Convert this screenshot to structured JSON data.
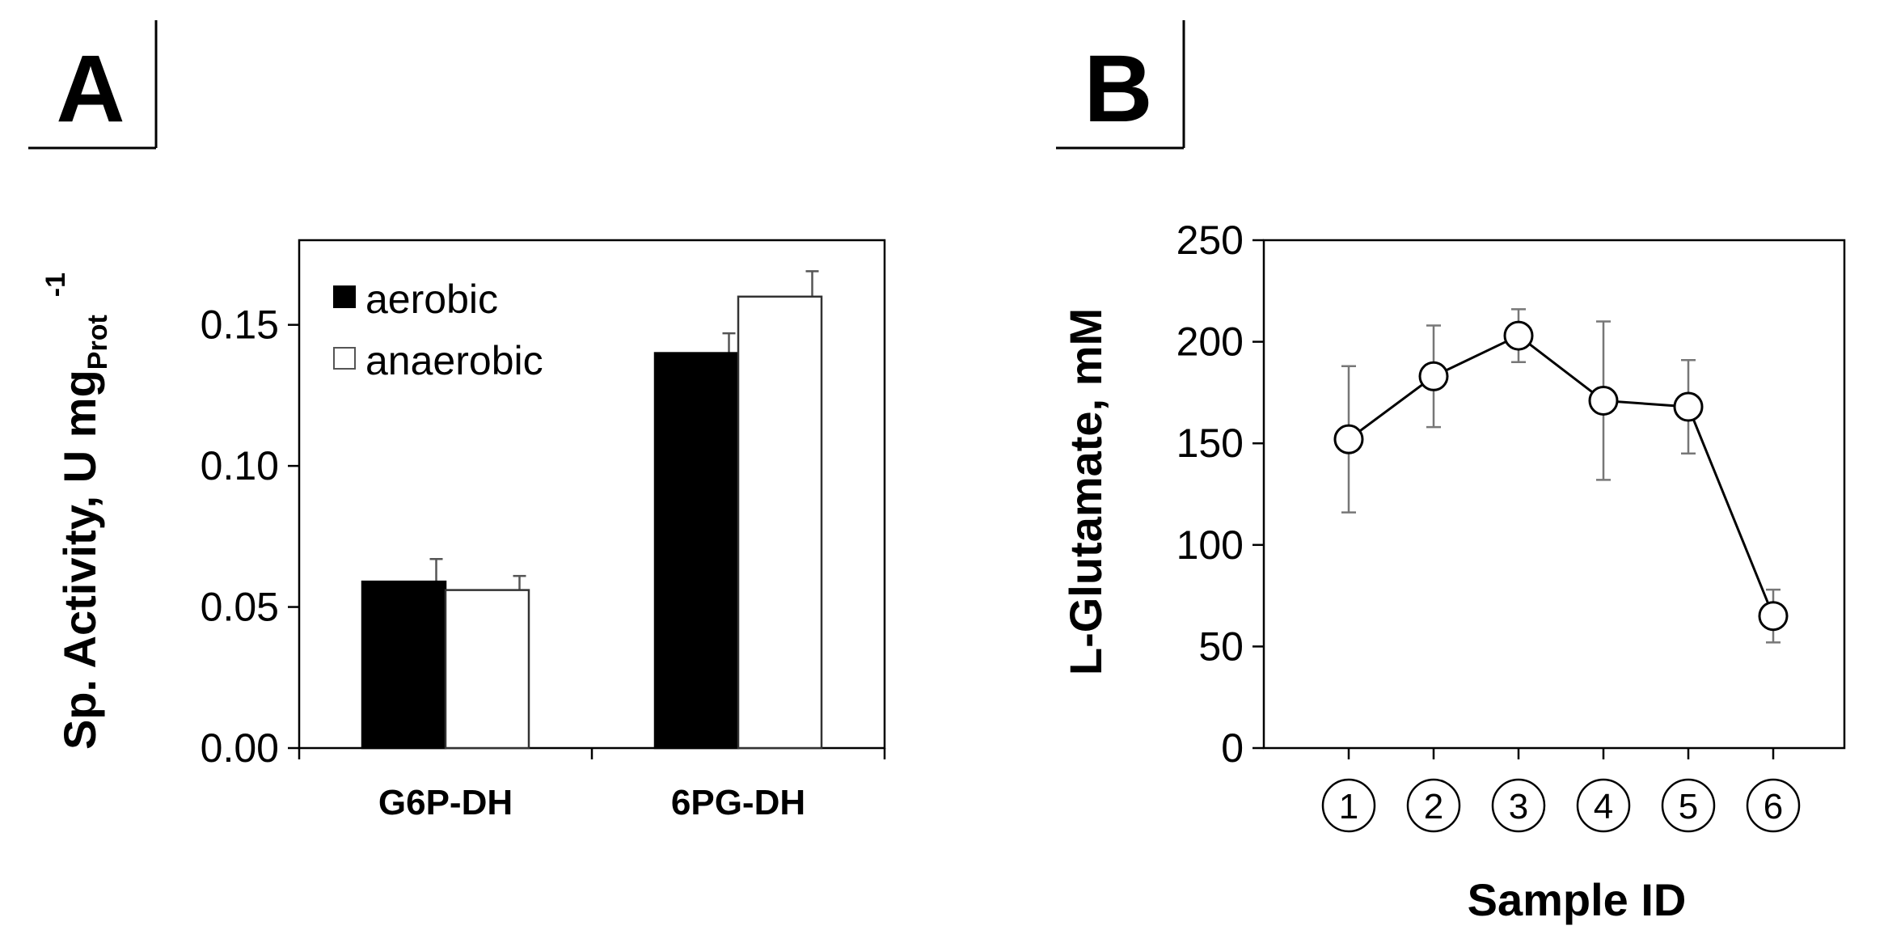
{
  "panels": {
    "a": {
      "letter": "A"
    },
    "b": {
      "letter": "B"
    }
  },
  "chart_data": [
    {
      "type": "bar",
      "panel": "A",
      "categories": [
        "G6P-DH",
        "6PG-DH"
      ],
      "series": [
        {
          "name": "aerobic",
          "values": [
            0.059,
            0.14
          ],
          "errors": [
            0.008,
            0.007
          ],
          "color": "#000000"
        },
        {
          "name": "anaerobic",
          "values": [
            0.056,
            0.16
          ],
          "errors": [
            0.005,
            0.009
          ],
          "color": "#ffffff"
        }
      ],
      "ylabel": {
        "main": "Sp. Activity, U mg",
        "sub": "Prot",
        "sup": "-1"
      },
      "ylim": [
        0,
        0.18
      ],
      "yticks": [
        "0.00",
        "0.05",
        "0.10",
        "0.15"
      ],
      "ytick_values": [
        0,
        0.05,
        0.1,
        0.15
      ],
      "legend_position": "top-left",
      "grid": false
    },
    {
      "type": "line",
      "panel": "B",
      "x": [
        "1",
        "2",
        "3",
        "4",
        "5",
        "6"
      ],
      "y": [
        152,
        183,
        203,
        171,
        168,
        65
      ],
      "errors": [
        36,
        25,
        13,
        39,
        23,
        13
      ],
      "ylabel": "L-Glutamate, mM",
      "xlabel": "Sample ID",
      "ylim": [
        0,
        250
      ],
      "yticks": [
        "0",
        "50",
        "100",
        "150",
        "200",
        "250"
      ],
      "ytick_values": [
        0,
        50,
        100,
        150,
        200,
        250
      ],
      "marker": "open-circle",
      "grid": false
    }
  ]
}
